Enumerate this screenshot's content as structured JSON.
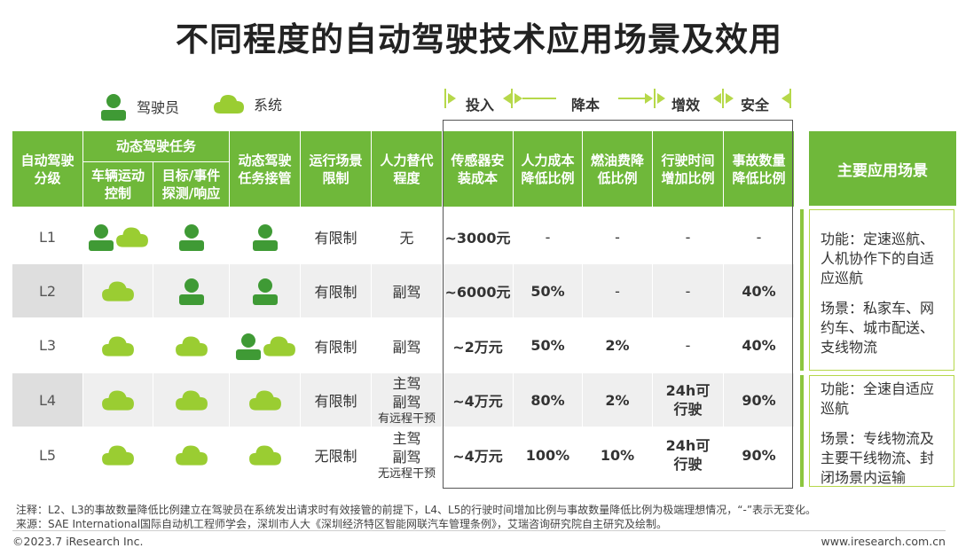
{
  "title": "不同程度的自动驾驶技术应用场景及效用",
  "legend": {
    "driver": "驾驶员",
    "system": "系统"
  },
  "bands": {
    "invest": "投入",
    "cost": "降本",
    "efficiency": "增效",
    "safety": "安全"
  },
  "headers": {
    "level": "自动驾驶分级",
    "ddt": "动态驾驶任务",
    "vehicle_control": "车辆运动控制",
    "oedr": "目标/事件探测/响应",
    "fallback": "动态驾驶任务接管",
    "odd": "运行场景限制",
    "replacement": "人力替代程度",
    "sensor_cost": "传感器安装成本",
    "labor_cost": "人力成本降低比例",
    "fuel_cost": "燃油费降低比例",
    "time_increase": "行驶时间增加比例",
    "accident": "事故数量降低比例",
    "main_scene": "主要应用场景"
  },
  "rows": [
    {
      "level": "L1",
      "vehicle_control": "driver+system",
      "oedr": "driver",
      "fallback": "driver",
      "odd": "有限制",
      "replacement": "无",
      "replacement_note": "",
      "sensor": "~3000元",
      "labor": "-",
      "fuel": "-",
      "time": "-",
      "accident": "-"
    },
    {
      "level": "L2",
      "vehicle_control": "system",
      "oedr": "driver",
      "fallback": "driver",
      "odd": "有限制",
      "replacement": "副驾",
      "replacement_note": "",
      "sensor": "~6000元",
      "labor": "50%",
      "fuel": "-",
      "time": "-",
      "accident": "40%"
    },
    {
      "level": "L3",
      "vehicle_control": "system",
      "oedr": "system",
      "fallback": "driver+system",
      "odd": "有限制",
      "replacement": "副驾",
      "replacement_note": "",
      "sensor": "~2万元",
      "labor": "50%",
      "fuel": "2%",
      "time": "-",
      "accident": "40%"
    },
    {
      "level": "L4",
      "vehicle_control": "system",
      "oedr": "system",
      "fallback": "system",
      "odd": "有限制",
      "replacement": "主驾\n副驾",
      "replacement_note": "有远程干预",
      "sensor": "~4万元",
      "labor": "80%",
      "fuel": "2%",
      "time": "24h可行驶",
      "accident": "90%"
    },
    {
      "level": "L5",
      "vehicle_control": "system",
      "oedr": "system",
      "fallback": "system",
      "odd": "无限制",
      "replacement": "主驾\n副驾",
      "replacement_note": "无远程干预",
      "sensor": "~4万元",
      "labor": "100%",
      "fuel": "10%",
      "time": "24h可行驶",
      "accident": "90%"
    }
  ],
  "scenes": [
    {
      "function": "功能：定速巡航、人机协作下的自适应巡航",
      "scene": "场景：私家车、网约车、城市配送、支线物流"
    },
    {
      "function": "功能：全速自适应巡航",
      "scene": "场景：专线物流及主要干线物流、封闭场景内运输"
    }
  ],
  "notes": {
    "note": "注释：L2、L3的事故数量降低比例建立在驾驶员在系统发出请求时有效接管的前提下，L4、L5的行驶时间增加比例与事故数量降低比例为极端理想情况，“-”表示无变化。",
    "source": "来源：SAE International国际自动机工程师学会，深圳市人大《深圳经济特区智能网联汽车管理条例》，艾瑞咨询研究院自主研究及绘制。"
  },
  "footer": {
    "left": "©2023.7 iResearch Inc.",
    "right": "www.iresearch.com.cn"
  },
  "colors": {
    "green": "#6fb83a",
    "light_green": "#8cc63f",
    "accent": "#b6d84a"
  }
}
